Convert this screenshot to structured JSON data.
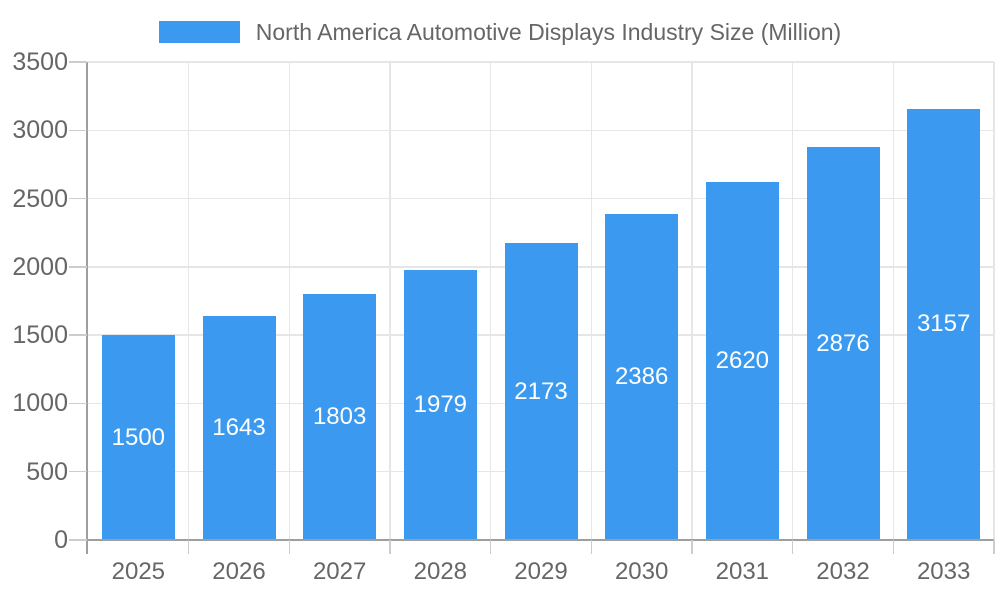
{
  "legend": {
    "label": "North America Automotive Displays Industry Size (Million)"
  },
  "chart_data": {
    "type": "bar",
    "title": "North America Automotive Displays Industry Size (Million)",
    "categories": [
      "2025",
      "2026",
      "2027",
      "2028",
      "2029",
      "2030",
      "2031",
      "2032",
      "2033"
    ],
    "values": [
      1500,
      1643,
      1803,
      1979,
      2173,
      2386,
      2620,
      2876,
      3157
    ],
    "xlabel": "",
    "ylabel": "",
    "ylim": [
      0,
      3500
    ],
    "ytick_step": 500,
    "ytick_labels": [
      "0",
      "500",
      "1000",
      "1500",
      "2000",
      "2500",
      "3000",
      "3500"
    ],
    "grid": true,
    "legend_position": "top-center",
    "bar_labels_inside": true,
    "colors": {
      "bar": "#3B99EF",
      "bar_label": "#FFFFFF",
      "axis_text": "#666666",
      "grid": "#E6E6E6",
      "axis_line": "#9E9E9E",
      "tick": "#CCCCCC",
      "background": "#FFFFFF"
    }
  }
}
